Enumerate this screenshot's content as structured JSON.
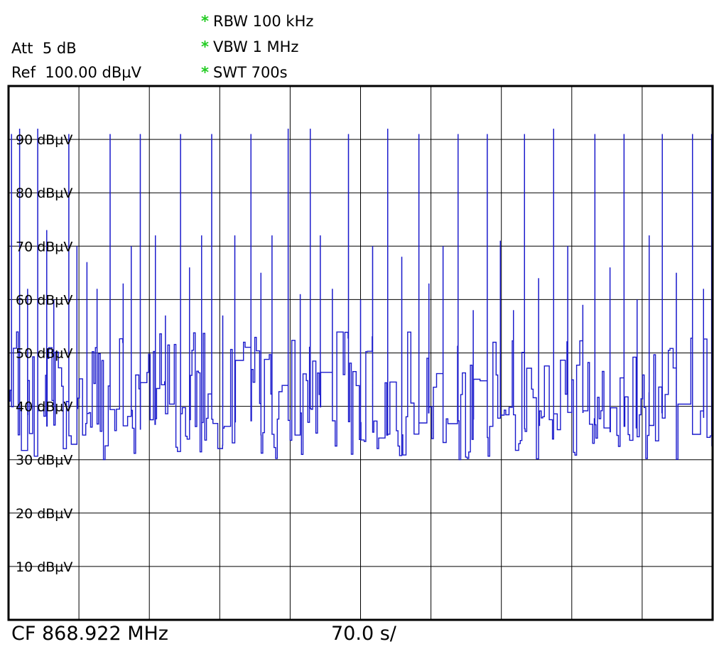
{
  "header": {
    "att_label": "Att",
    "att_value": "5 dB",
    "ref_label": "Ref",
    "ref_value": "100.00 dBµV",
    "marker": "*",
    "rbw": "RBW 100 kHz",
    "vbw": "VBW 1 MHz",
    "swt": "SWT 700s"
  },
  "footer": {
    "center_frequency": "CF 868.922 MHz",
    "time_per_division": "70.0 s/"
  },
  "colors": {
    "trace": "#1a1acc",
    "grid": "#000000",
    "marker": "#22cc22"
  },
  "chart_data": {
    "type": "line",
    "title": "",
    "xlabel": "",
    "ylabel": "",
    "x_unit": "s",
    "xlim": [
      0,
      700
    ],
    "ylim": [
      0,
      100
    ],
    "grid": true,
    "y_ticks": [
      {
        "value": 90,
        "label": "90 dBµV"
      },
      {
        "value": 80,
        "label": "80 dBµV"
      },
      {
        "value": 70,
        "label": "70 dBµV"
      },
      {
        "value": 60,
        "label": "60 dBµV"
      },
      {
        "value": 50,
        "label": "50 dBµV"
      },
      {
        "value": 40,
        "label": "40 dBµV"
      },
      {
        "value": 30,
        "label": "30 dBµV"
      },
      {
        "value": 20,
        "label": "20 dBµV"
      },
      {
        "value": 10,
        "label": "10 dBµV"
      }
    ],
    "noise_floor": 40,
    "peaks": [
      {
        "x": 3,
        "y": 91
      },
      {
        "x": 11,
        "y": 92
      },
      {
        "x": 19,
        "y": 62
      },
      {
        "x": 29,
        "y": 92
      },
      {
        "x": 38,
        "y": 73
      },
      {
        "x": 45,
        "y": 60
      },
      {
        "x": 60,
        "y": 91
      },
      {
        "x": 68,
        "y": 70
      },
      {
        "x": 78,
        "y": 67
      },
      {
        "x": 88,
        "y": 62
      },
      {
        "x": 101,
        "y": 91
      },
      {
        "x": 114,
        "y": 63
      },
      {
        "x": 122,
        "y": 70
      },
      {
        "x": 131,
        "y": 91
      },
      {
        "x": 146,
        "y": 72
      },
      {
        "x": 156,
        "y": 57
      },
      {
        "x": 171,
        "y": 91
      },
      {
        "x": 180,
        "y": 66
      },
      {
        "x": 192,
        "y": 72
      },
      {
        "x": 202,
        "y": 91
      },
      {
        "x": 213,
        "y": 57
      },
      {
        "x": 225,
        "y": 72
      },
      {
        "x": 241,
        "y": 91
      },
      {
        "x": 251,
        "y": 65
      },
      {
        "x": 262,
        "y": 72
      },
      {
        "x": 278,
        "y": 92
      },
      {
        "x": 290,
        "y": 61
      },
      {
        "x": 300,
        "y": 92
      },
      {
        "x": 310,
        "y": 72
      },
      {
        "x": 322,
        "y": 62
      },
      {
        "x": 338,
        "y": 91
      },
      {
        "x": 350,
        "y": 60
      },
      {
        "x": 362,
        "y": 70
      },
      {
        "x": 377,
        "y": 92
      },
      {
        "x": 391,
        "y": 68
      },
      {
        "x": 408,
        "y": 91
      },
      {
        "x": 418,
        "y": 63
      },
      {
        "x": 432,
        "y": 70
      },
      {
        "x": 447,
        "y": 91
      },
      {
        "x": 462,
        "y": 58
      },
      {
        "x": 476,
        "y": 91
      },
      {
        "x": 489,
        "y": 71
      },
      {
        "x": 502,
        "y": 58
      },
      {
        "x": 513,
        "y": 91
      },
      {
        "x": 527,
        "y": 64
      },
      {
        "x": 542,
        "y": 92
      },
      {
        "x": 556,
        "y": 70
      },
      {
        "x": 571,
        "y": 59
      },
      {
        "x": 583,
        "y": 91
      },
      {
        "x": 598,
        "y": 66
      },
      {
        "x": 612,
        "y": 91
      },
      {
        "x": 625,
        "y": 60
      },
      {
        "x": 637,
        "y": 72
      },
      {
        "x": 650,
        "y": 91
      },
      {
        "x": 664,
        "y": 65
      },
      {
        "x": 680,
        "y": 91
      },
      {
        "x": 691,
        "y": 62
      },
      {
        "x": 699,
        "y": 91
      }
    ]
  }
}
